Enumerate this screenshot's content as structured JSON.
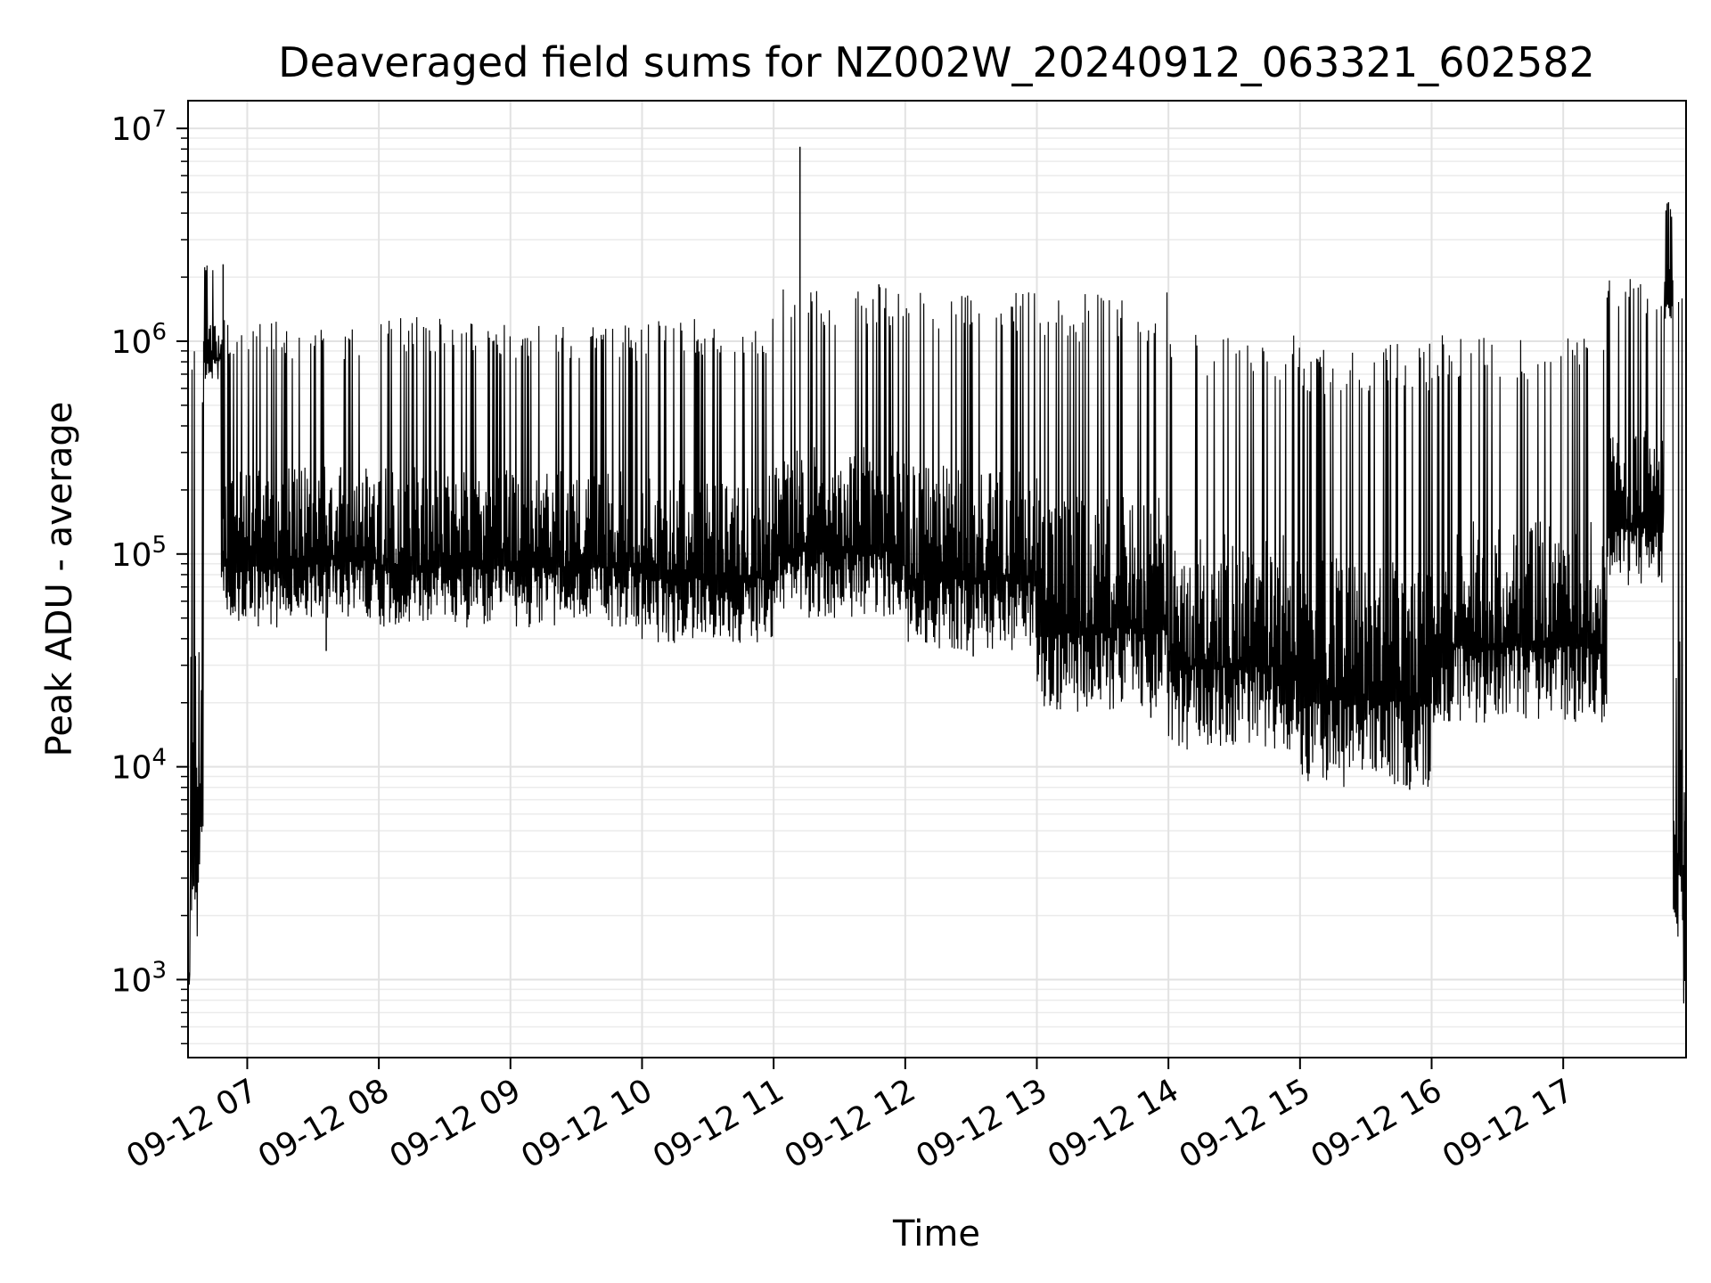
{
  "chart_data": {
    "type": "line",
    "title": "Deaveraged field sums for NZ002W_20240912_063321_602582",
    "xlabel": "Time",
    "ylabel": "Peak ADU - average",
    "yscale": "log",
    "grid": true,
    "grid_minor": true,
    "legend": "none",
    "xlim": [
      "09-12 06:33",
      "09-12 17:56"
    ],
    "ylim": [
      430,
      13500000
    ],
    "x_tick_labels": [
      "09-12 07",
      "09-12 08",
      "09-12 09",
      "09-12 10",
      "09-12 11",
      "09-12 12",
      "09-12 13",
      "09-12 14",
      "09-12 15",
      "09-12 16",
      "09-12 17"
    ],
    "x_tick_hours": [
      7,
      8,
      9,
      10,
      11,
      12,
      13,
      14,
      15,
      16,
      17
    ],
    "y_tick_exponents": [
      3,
      4,
      5,
      6,
      7
    ],
    "y_tick_base": "10",
    "series": [
      {
        "color": "#000000",
        "segments": [
          {
            "from": "09-12 06:33",
            "to": "09-12 06:34",
            "low": 900,
            "high": 1400
          },
          {
            "from": "09-12 06:34",
            "to": "09-12 06:40",
            "low": 1500,
            "high": 1000000
          },
          {
            "from": "09-12 06:40",
            "to": "09-12 06:48",
            "low": 650000,
            "high": 2300000
          },
          {
            "from": "09-12 06:48",
            "to": "09-12 07:15",
            "low": 45000,
            "high": 1300000
          },
          {
            "from": "09-12 07:15",
            "to": "09-12 08:00",
            "low": 50000,
            "high": 1200000
          },
          {
            "from": "09-12 08:00",
            "to": "09-12 09:00",
            "low": 45000,
            "high": 1300000
          },
          {
            "from": "09-12 09:00",
            "to": "09-12 10:00",
            "low": 45000,
            "high": 1200000
          },
          {
            "from": "09-12 10:00",
            "to": "09-12 11:00",
            "low": 38000,
            "high": 1300000
          },
          {
            "from": "09-12 11:00",
            "to": "09-12 12:00",
            "low": 50000,
            "high": 1800000
          },
          {
            "from": "09-12 12:00",
            "to": "09-12 13:00",
            "low": 35000,
            "high": 1700000
          },
          {
            "from": "09-12 13:00",
            "to": "09-12 14:00",
            "low": 18000,
            "high": 1700000
          },
          {
            "from": "09-12 14:00",
            "to": "09-12 15:00",
            "low": 12000,
            "high": 1100000
          },
          {
            "from": "09-12 15:00",
            "to": "09-12 16:00",
            "low": 8000,
            "high": 1000000
          },
          {
            "from": "09-12 16:00",
            "to": "09-12 17:20",
            "low": 16000,
            "high": 1100000
          },
          {
            "from": "09-12 17:20",
            "to": "09-12 17:46",
            "low": 70000,
            "high": 2000000
          },
          {
            "from": "09-12 17:46",
            "to": "09-12 17:50",
            "low": 1200000,
            "high": 4500000
          },
          {
            "from": "09-12 17:50",
            "to": "09-12 17:56",
            "low": 650,
            "high": 1800000
          }
        ],
        "spikes": [
          {
            "time": "09-12 06:49",
            "value": 2300000
          },
          {
            "time": "09-12 07:36",
            "value": 35000
          },
          {
            "time": "09-12 11:12",
            "value": 8200000
          },
          {
            "time": "09-12 11:48",
            "value": 1850000
          },
          {
            "time": "09-12 12:31",
            "value": 33000
          },
          {
            "time": "09-12 13:52",
            "value": 17000
          },
          {
            "time": "09-12 15:50",
            "value": 7800
          },
          {
            "time": "09-12 17:48",
            "value": 4500000
          }
        ]
      }
    ]
  }
}
